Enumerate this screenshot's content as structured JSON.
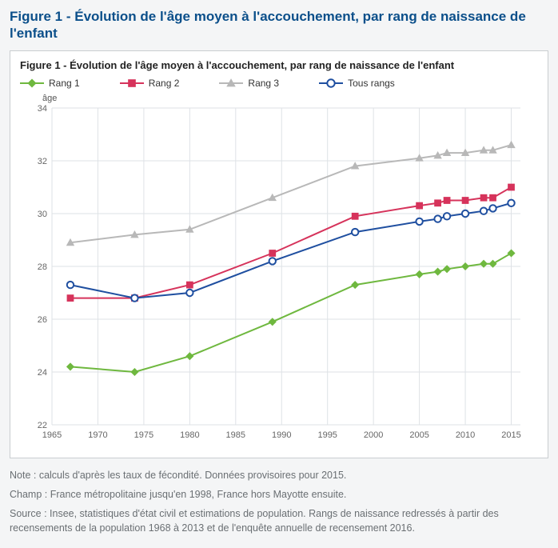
{
  "figure_title": "Figure 1 - Évolution de l'âge moyen à l'accouchement, par rang de naissance de l'enfant",
  "chart": {
    "type": "line",
    "inner_title": "Figure 1 - Évolution de l'âge moyen à l'accouchement, par rang de naissance de l'enfant",
    "y_axis_label": "âge",
    "background_color": "#ffffff",
    "grid_color": "#dee2e6",
    "axis_text_color": "#666666",
    "xlim": [
      1965,
      2016
    ],
    "ylim": [
      22,
      34
    ],
    "xtick_step": 5,
    "ytick_step": 2,
    "x_ticks": [
      1965,
      1970,
      1975,
      1980,
      1985,
      1990,
      1995,
      2000,
      2005,
      2010,
      2015
    ],
    "y_ticks": [
      22,
      24,
      26,
      28,
      30,
      32,
      34
    ],
    "x_values": [
      1967,
      1974,
      1980,
      1989,
      1998,
      2005,
      2007,
      2008,
      2010,
      2012,
      2013,
      2015
    ],
    "line_width": 2,
    "marker_size": 4.2,
    "series": [
      {
        "name": "Rang 1",
        "color": "#6fb83f",
        "marker": "diamond",
        "marker_fill": "#6fb83f",
        "values": [
          24.2,
          24.0,
          24.6,
          25.9,
          27.3,
          27.7,
          27.8,
          27.9,
          28.0,
          28.1,
          28.1,
          28.5
        ]
      },
      {
        "name": "Rang 2",
        "color": "#d6335b",
        "marker": "square",
        "marker_fill": "#d6335b",
        "values": [
          26.8,
          26.8,
          27.3,
          28.5,
          29.9,
          30.3,
          30.4,
          30.5,
          30.5,
          30.6,
          30.6,
          31.0
        ]
      },
      {
        "name": "Rang 3",
        "color": "#b8b8b8",
        "marker": "triangle",
        "marker_fill": "#b8b8b8",
        "values": [
          28.9,
          29.2,
          29.4,
          30.6,
          31.8,
          32.1,
          32.2,
          32.3,
          32.3,
          32.4,
          32.4,
          32.6
        ]
      },
      {
        "name": "Tous rangs",
        "color": "#1f4fa0",
        "marker": "circle",
        "marker_fill": "#ffffff",
        "values": [
          27.3,
          26.8,
          27.0,
          28.2,
          29.3,
          29.7,
          29.8,
          29.9,
          30.0,
          30.1,
          30.2,
          30.4
        ]
      }
    ]
  },
  "notes": {
    "note": "Note : calculs d'après les taux de fécondité. Données provisoires pour 2015.",
    "champ": "Champ : France métropolitaine jusqu'en 1998, France hors Mayotte ensuite.",
    "source": "Source : Insee, statistiques d'état civil et estimations de population. Rangs de naissance redressés à partir des recensements de la population 1968 à 2013 et de l'enquête annuelle de recensement 2016."
  }
}
